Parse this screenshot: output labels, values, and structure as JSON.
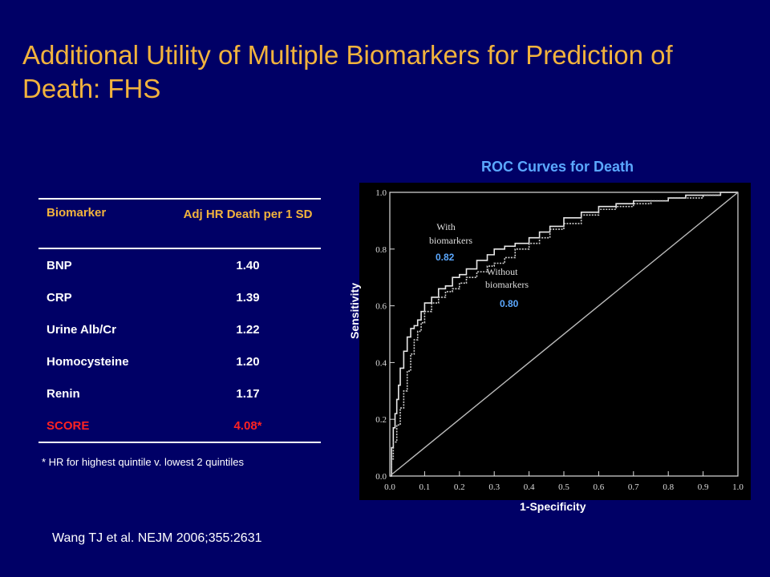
{
  "slide": {
    "title": "Additional Utility of Multiple Biomarkers for Prediction of Death: FHS",
    "citation": "Wang TJ et al. NEJM 2006;355:2631"
  },
  "table": {
    "header_biomarker": "Biomarker",
    "header_hr": "Adj HR Death per 1 SD",
    "rows": [
      {
        "biomarker": "BNP",
        "hr": "1.40"
      },
      {
        "biomarker": "CRP",
        "hr": "1.39"
      },
      {
        "biomarker": "Urine Alb/Cr",
        "hr": "1.22"
      },
      {
        "biomarker": "Homocysteine",
        "hr": "1.20"
      },
      {
        "biomarker": "Renin",
        "hr": "1.17"
      }
    ],
    "score_label": "SCORE",
    "score_value": "4.08*",
    "footnote": "* HR for highest quintile v. lowest 2 quintiles"
  },
  "colors": {
    "background": "#000066",
    "title": "#F2B33D",
    "accent_blue": "#5BA8FF",
    "score_red": "#FF2222"
  },
  "chart_data": {
    "type": "line",
    "title": "ROC Curves for Death",
    "xlabel": "1-Specificity",
    "ylabel": "Sensitivity",
    "xlim": [
      0,
      1
    ],
    "ylim": [
      0,
      1
    ],
    "xticks": [
      "0.0",
      "0.1",
      "0.2",
      "0.3",
      "0.4",
      "0.5",
      "0.6",
      "0.7",
      "0.8",
      "0.9",
      "1.0"
    ],
    "yticks": [
      "0.0",
      "0.2",
      "0.4",
      "0.6",
      "0.8",
      "1.0"
    ],
    "grid": false,
    "series": [
      {
        "name": "With biomarkers",
        "auc_label": "0.82",
        "x": [
          0,
          0.005,
          0.01,
          0.015,
          0.02,
          0.025,
          0.03,
          0.04,
          0.05,
          0.06,
          0.07,
          0.08,
          0.09,
          0.1,
          0.12,
          0.14,
          0.16,
          0.18,
          0.2,
          0.22,
          0.25,
          0.28,
          0.3,
          0.33,
          0.36,
          0.4,
          0.43,
          0.46,
          0.5,
          0.55,
          0.6,
          0.65,
          0.7,
          0.75,
          0.8,
          0.85,
          0.9,
          0.95,
          1.0
        ],
        "y": [
          0,
          0.1,
          0.17,
          0.22,
          0.27,
          0.32,
          0.38,
          0.44,
          0.49,
          0.52,
          0.53,
          0.55,
          0.58,
          0.61,
          0.63,
          0.66,
          0.67,
          0.7,
          0.71,
          0.73,
          0.76,
          0.78,
          0.8,
          0.81,
          0.82,
          0.84,
          0.86,
          0.88,
          0.91,
          0.93,
          0.95,
          0.96,
          0.97,
          0.97,
          0.98,
          0.99,
          0.99,
          1.0,
          1.0
        ]
      },
      {
        "name": "Without biomarkers",
        "auc_label": "0.80",
        "x": [
          0,
          0.005,
          0.01,
          0.02,
          0.03,
          0.04,
          0.05,
          0.06,
          0.07,
          0.08,
          0.09,
          0.1,
          0.12,
          0.14,
          0.16,
          0.18,
          0.2,
          0.22,
          0.25,
          0.28,
          0.3,
          0.33,
          0.36,
          0.4,
          0.43,
          0.46,
          0.5,
          0.55,
          0.6,
          0.65,
          0.7,
          0.75,
          0.8,
          0.85,
          0.9,
          0.95,
          1.0
        ],
        "y": [
          0,
          0.06,
          0.12,
          0.18,
          0.24,
          0.3,
          0.37,
          0.43,
          0.48,
          0.51,
          0.54,
          0.58,
          0.61,
          0.63,
          0.65,
          0.66,
          0.68,
          0.7,
          0.72,
          0.74,
          0.75,
          0.77,
          0.8,
          0.82,
          0.84,
          0.87,
          0.89,
          0.92,
          0.94,
          0.95,
          0.96,
          0.97,
          0.98,
          0.98,
          0.99,
          1.0,
          1.0
        ]
      },
      {
        "name": "",
        "x": [
          0,
          1
        ],
        "y": [
          0,
          1
        ]
      }
    ]
  }
}
